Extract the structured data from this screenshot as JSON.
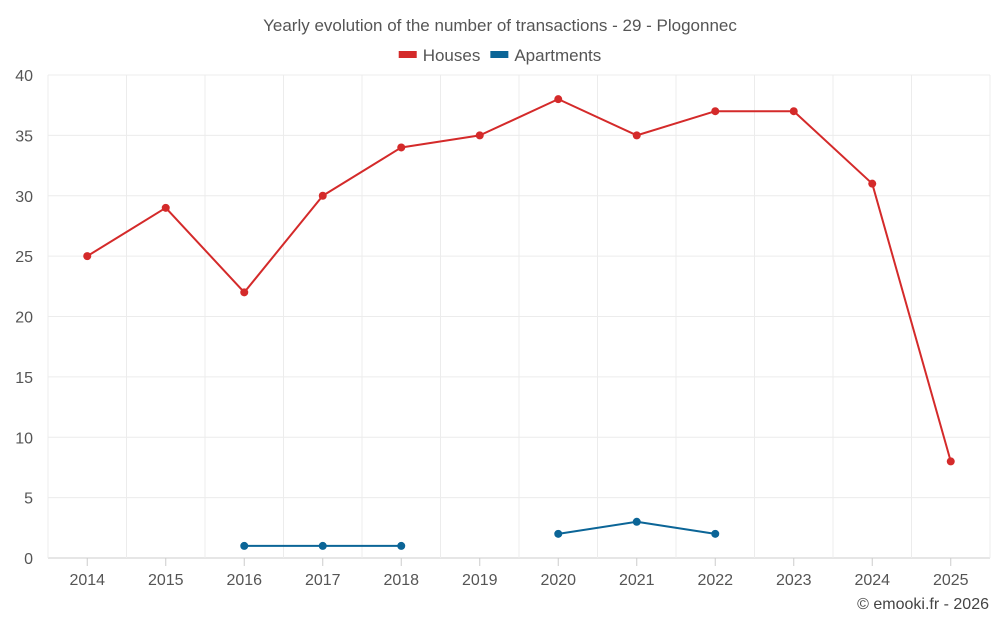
{
  "chart_data": {
    "type": "line",
    "title": "Yearly evolution of the number of transactions - 29 - Plogonnec",
    "categories": [
      "2014",
      "2015",
      "2016",
      "2017",
      "2018",
      "2019",
      "2020",
      "2021",
      "2022",
      "2023",
      "2024",
      "2025"
    ],
    "ylim": [
      0,
      40
    ],
    "yticks": [
      0,
      5,
      10,
      15,
      20,
      25,
      30,
      35,
      40
    ],
    "grid": true,
    "legend_position": "top-center",
    "series": [
      {
        "name": "Houses",
        "color": "#d42a2a",
        "values": [
          25,
          29,
          22,
          30,
          34,
          35,
          38,
          35,
          37,
          37,
          31,
          8
        ]
      },
      {
        "name": "Apartments",
        "color": "#0b6597",
        "values": [
          null,
          null,
          1,
          1,
          1,
          null,
          2,
          3,
          2,
          null,
          null,
          null
        ]
      }
    ]
  },
  "credit": "© emooki.fr - 2026"
}
